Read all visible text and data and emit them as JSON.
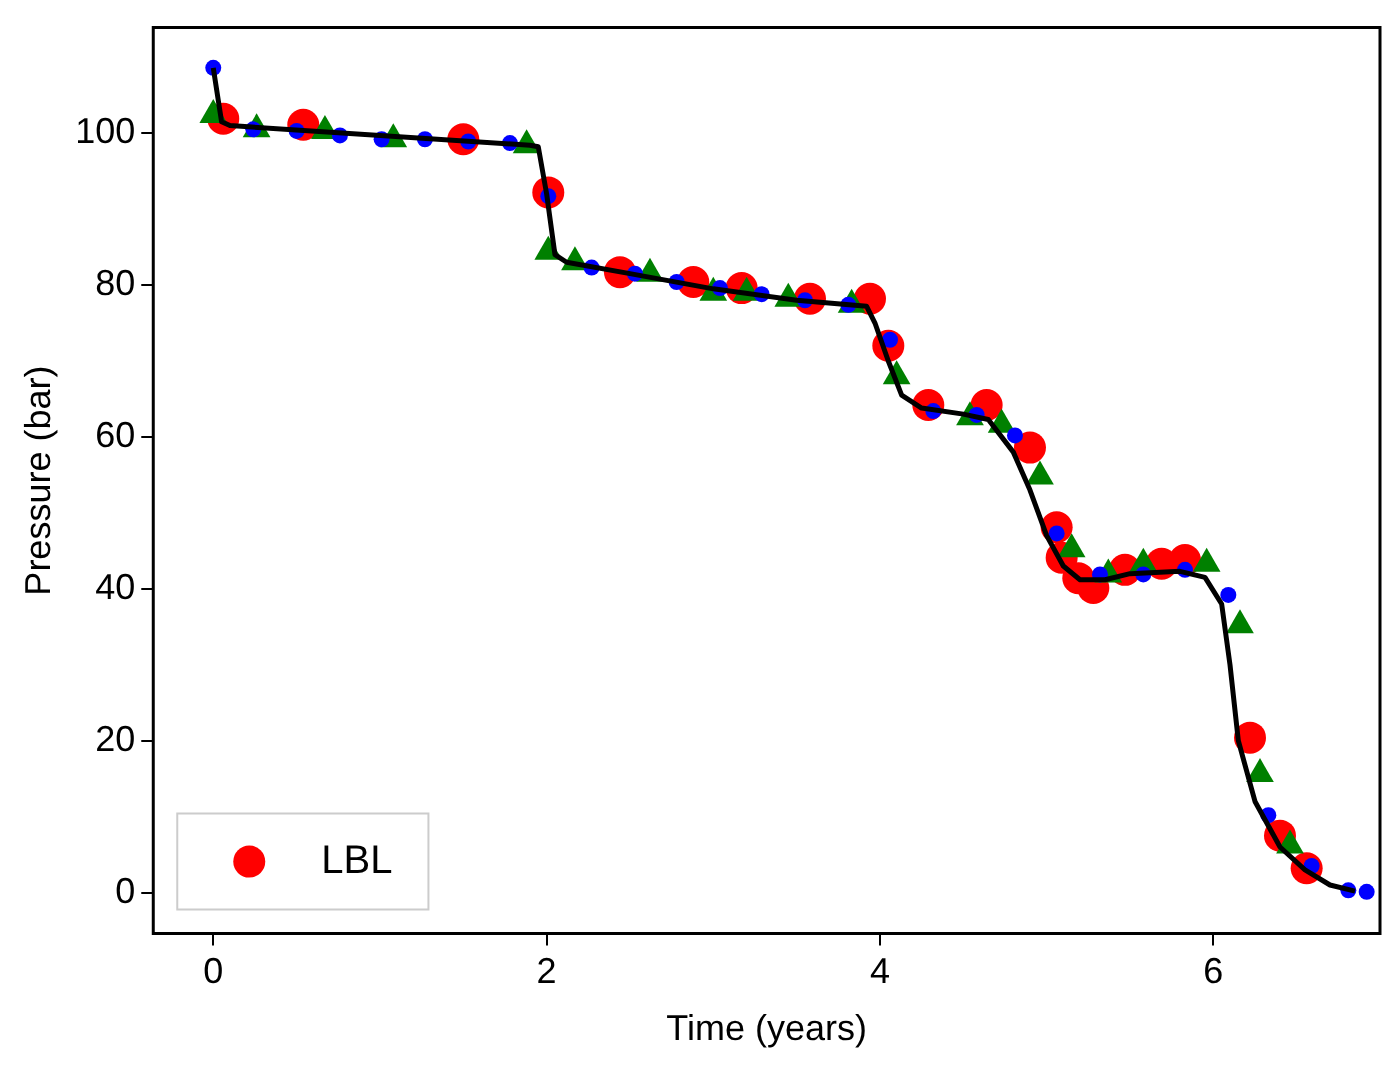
{
  "chart_data": {
    "type": "scatter",
    "xlabel": "Time (years)",
    "ylabel": "Pressure (bar)",
    "xlim": [
      -0.36,
      7.0
    ],
    "ylim": [
      -5.4,
      113.9
    ],
    "xticks": [
      0,
      2,
      4,
      6
    ],
    "yticks": [
      0,
      20,
      40,
      60,
      80,
      100
    ],
    "grid": false,
    "legend": "bottom left",
    "series": [
      {
        "name": "LBL",
        "color": "#ff0000",
        "marker": "circle",
        "x": [
          0.06,
          0.54,
          1.5,
          2.01,
          2.44,
          2.88,
          3.17,
          3.58,
          3.94,
          4.05,
          4.29,
          4.64,
          4.9,
          5.06,
          5.09,
          5.19,
          5.28,
          5.47,
          5.69,
          5.83,
          6.22,
          6.4,
          6.56
        ],
        "values": [
          101.9,
          101.1,
          99.2,
          92.2,
          81.7,
          80.4,
          79.6,
          78.2,
          78.2,
          72,
          64.2,
          64.2,
          58.6,
          48.1,
          44.1,
          41.4,
          40.1,
          42.5,
          43.3,
          43.8,
          20.4,
          7.5,
          3.2
        ]
      },
      {
        "color": "#008000",
        "marker": "triangle",
        "x": [
          0,
          0.26,
          0.67,
          1.08,
          1.88,
          2.01,
          2.17,
          2.62,
          3.0,
          3.2,
          3.45,
          3.83,
          4.1,
          4.54,
          4.73,
          4.96,
          5.15,
          5.37,
          5.58,
          5.96,
          6.16,
          6.28,
          6.46
        ],
        "values": [
          102.4,
          100.5,
          100.3,
          99.2,
          98.4,
          84.4,
          83,
          81.5,
          79,
          79,
          78.2,
          77.4,
          68,
          62.6,
          61.6,
          54.8,
          45.2,
          41.9,
          43.3,
          43.3,
          35.2,
          15.6,
          6.2
        ]
      },
      {
        "color": "#0000ff",
        "marker": "circle",
        "x": [
          0,
          0.24,
          0.5,
          0.76,
          1.01,
          1.27,
          1.53,
          1.78,
          2.01,
          2.27,
          2.53,
          2.78,
          3.04,
          3.29,
          3.55,
          3.81,
          4.06,
          4.32,
          4.58,
          4.81,
          5.06,
          5.32,
          5.58,
          5.83,
          6.09,
          6.33,
          6.59,
          6.81,
          6.92
        ],
        "values": [
          108.6,
          100.5,
          100.3,
          99.7,
          99.2,
          99.2,
          98.9,
          98.7,
          91.7,
          82.3,
          81.5,
          80.4,
          79.6,
          78.8,
          78,
          77.4,
          72.8,
          63.4,
          62.9,
          60.2,
          47.3,
          41.9,
          41.9,
          42.5,
          39.2,
          10.2,
          3.5,
          0.3,
          0.1
        ]
      },
      {
        "type": "line",
        "color": "#000000",
        "marker": "none",
        "line_style": "solid",
        "x": [
          0,
          0.05,
          0.1,
          1.9,
          1.95,
          2.0,
          2.05,
          2.12,
          2.5,
          3,
          3.5,
          3.92,
          3.97,
          4.05,
          4.13,
          4.25,
          4.5,
          4.65,
          4.8,
          4.9,
          5.0,
          5.1,
          5.2,
          5.35,
          5.5,
          5.8,
          5.95,
          6.05,
          6.1,
          6.15,
          6.25,
          6.4,
          6.55,
          6.7,
          6.85
        ],
        "values": [
          108.6,
          101.5,
          101,
          98.4,
          98.2,
          92,
          84,
          83,
          81.5,
          79.5,
          78,
          77.2,
          75,
          70,
          65.5,
          63.8,
          63,
          62.3,
          58,
          53,
          47,
          43,
          41.2,
          41.2,
          42,
          42.3,
          41.5,
          38,
          30,
          20,
          12,
          6,
          3,
          1,
          0.2
        ]
      }
    ]
  }
}
